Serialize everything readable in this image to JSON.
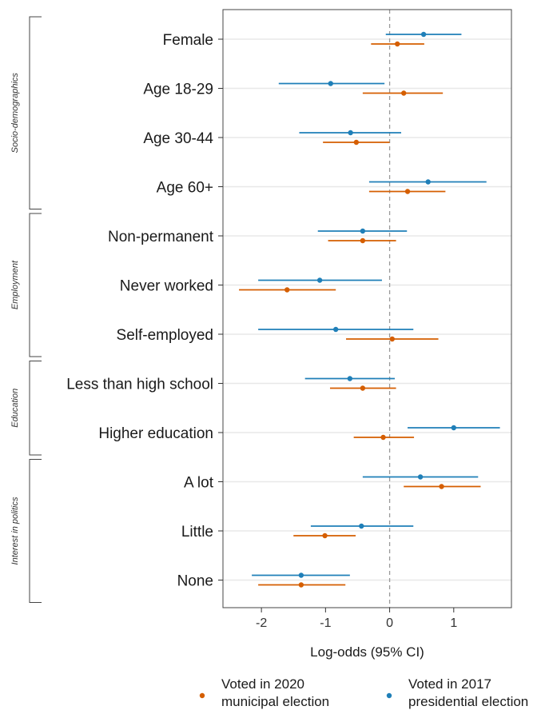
{
  "chart_data": {
    "type": "forest",
    "xlabel": "Log-odds (95% CI)",
    "xlim": [
      -2.6,
      1.9
    ],
    "xticks": [
      -2,
      -1,
      0,
      1
    ],
    "xtick_labels": [
      "-2",
      "-1",
      "0",
      "1"
    ],
    "reference_line": 0,
    "grid": "horizontal",
    "legend_position": "bottom",
    "colors": {
      "orange": "#d55e00",
      "blue": "#1f7fb8"
    },
    "categories": [
      "Female",
      "Age 18-29",
      "Age 30-44",
      "Age 60+",
      "Non-permanent",
      "Never worked",
      "Self-employed",
      "Less than high school",
      "Higher education",
      "A lot",
      "Little",
      "None"
    ],
    "groups": [
      {
        "label": "Socio-demographics",
        "items": [
          "Female",
          "Age 18-29",
          "Age 30-44",
          "Age 60+"
        ]
      },
      {
        "label": "Employment",
        "items": [
          "Non-permanent",
          "Never worked",
          "Self-employed"
        ]
      },
      {
        "label": "Education",
        "items": [
          "Less than high school",
          "Higher education"
        ]
      },
      {
        "label": "Interest in politics",
        "items": [
          "A lot",
          "Little",
          "None"
        ]
      }
    ],
    "series": [
      {
        "name": "Voted in 2017 presidential election",
        "legend_lines": [
          "Voted in 2017",
          "presidential election"
        ],
        "color": "#1f7fb8",
        "estimate": [
          0.53,
          -0.92,
          -0.61,
          0.6,
          -0.42,
          -1.09,
          -0.84,
          -0.62,
          1.0,
          0.48,
          -0.44,
          -1.38
        ],
        "lower": [
          -0.06,
          -1.73,
          -1.41,
          -0.32,
          -1.12,
          -2.05,
          -2.05,
          -1.32,
          0.28,
          -0.42,
          -1.23,
          -2.15
        ],
        "upper": [
          1.12,
          -0.08,
          0.18,
          1.51,
          0.27,
          -0.12,
          0.37,
          0.08,
          1.72,
          1.38,
          0.37,
          -0.62
        ]
      },
      {
        "name": "Voted in 2020 municipal election",
        "legend_lines": [
          "Voted in 2020",
          "municipal election"
        ],
        "color": "#d55e00",
        "estimate": [
          0.12,
          0.22,
          -0.52,
          0.28,
          -0.42,
          -1.6,
          0.04,
          -0.42,
          -0.1,
          0.81,
          -1.01,
          -1.38
        ],
        "lower": [
          -0.29,
          -0.42,
          -1.04,
          -0.32,
          -0.96,
          -2.35,
          -0.68,
          -0.93,
          -0.56,
          0.22,
          -1.5,
          -2.05
        ],
        "upper": [
          0.54,
          0.83,
          0.0,
          0.87,
          0.1,
          -0.84,
          0.76,
          0.1,
          0.38,
          1.42,
          -0.53,
          -0.69
        ]
      }
    ]
  }
}
